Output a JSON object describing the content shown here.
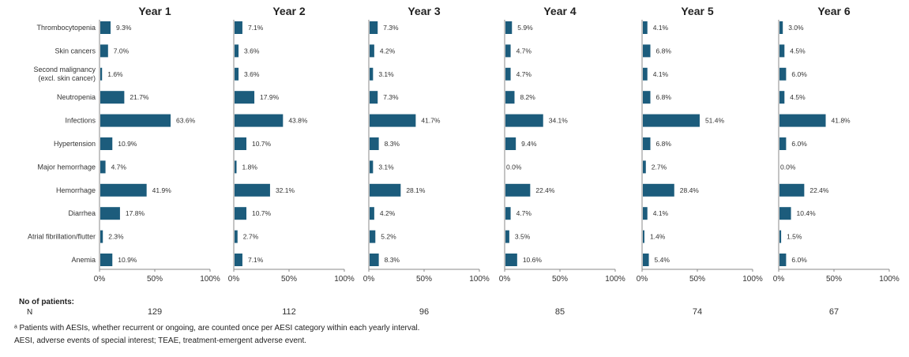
{
  "chart_data": {
    "type": "bar",
    "orientation": "horizontal",
    "categories": [
      "Thrombocytopenia",
      "Skin cancers",
      "Second malignancy|(excl. skin cancer)",
      "Neutropenia",
      "Infections",
      "Hypertension",
      "Major hemorrhage",
      "Hemorrhage",
      "Diarrhea",
      "Atrial fibrillation/flutter",
      "Anemia"
    ],
    "xlim": [
      0,
      100
    ],
    "xticks": [
      "0%",
      "50%",
      "100%"
    ],
    "bar_color": "#1c5c7c",
    "panels": [
      {
        "title": "Year 1",
        "n": "129",
        "values": [
          9.3,
          7.0,
          1.6,
          21.7,
          63.6,
          10.9,
          4.7,
          41.9,
          17.8,
          2.3,
          10.9
        ],
        "labels": [
          "9.3%",
          "7.0%",
          "1.6%",
          "21.7%",
          "63.6%",
          "10.9%",
          "4.7%",
          "41.9%",
          "17.8%",
          "2.3%",
          "10.9%"
        ]
      },
      {
        "title": "Year 2",
        "n": "112",
        "values": [
          7.1,
          3.6,
          3.6,
          17.9,
          43.8,
          10.7,
          1.8,
          32.1,
          10.7,
          2.7,
          7.1
        ],
        "labels": [
          "7.1%",
          "3.6%",
          "3.6%",
          "17.9%",
          "43.8%",
          "10.7%",
          "1.8%",
          "32.1%",
          "10.7%",
          "2.7%",
          "7.1%"
        ]
      },
      {
        "title": "Year 3",
        "n": "96",
        "values": [
          7.3,
          4.2,
          3.1,
          7.3,
          41.7,
          8.3,
          3.1,
          28.1,
          4.2,
          5.2,
          8.3
        ],
        "labels": [
          "7.3%",
          "4.2%",
          "3.1%",
          "7.3%",
          "41.7%",
          "8.3%",
          "3.1%",
          "28.1%",
          "4.2%",
          "5.2%",
          "8.3%"
        ]
      },
      {
        "title": "Year 4",
        "n": "85",
        "values": [
          5.9,
          4.7,
          4.7,
          8.2,
          34.1,
          9.4,
          0.0,
          22.4,
          4.7,
          3.5,
          10.6
        ],
        "labels": [
          "5.9%",
          "4.7%",
          "4.7%",
          "8.2%",
          "34.1%",
          "9.4%",
          "0.0%",
          "22.4%",
          "4.7%",
          "3.5%",
          "10.6%"
        ]
      },
      {
        "title": "Year 5",
        "n": "74",
        "values": [
          4.1,
          6.8,
          4.1,
          6.8,
          51.4,
          6.8,
          2.7,
          28.4,
          4.1,
          1.4,
          5.4
        ],
        "labels": [
          "4.1%",
          "6.8%",
          "4.1%",
          "6.8%",
          "51.4%",
          "6.8%",
          "2.7%",
          "28.4%",
          "4.1%",
          "1.4%",
          "5.4%"
        ]
      },
      {
        "title": "Year 6",
        "n": "67",
        "values": [
          3.0,
          4.5,
          6.0,
          4.5,
          41.8,
          6.0,
          0.0,
          22.4,
          10.4,
          1.5,
          6.0
        ],
        "labels": [
          "3.0%",
          "4.5%",
          "6.0%",
          "4.5%",
          "41.8%",
          "6.0%",
          "0.0%",
          "22.4%",
          "10.4%",
          "1.5%",
          "6.0%"
        ]
      }
    ]
  },
  "patients": {
    "heading": "No of patients:",
    "row_label": "N"
  },
  "footnotes": {
    "line1": "ᵃ Patients with AESIs, whether recurrent or ongoing, are counted once per AESI category within each yearly interval.",
    "line2": "AESI, adverse events of special interest; TEAE, treatment-emergent adverse event."
  }
}
